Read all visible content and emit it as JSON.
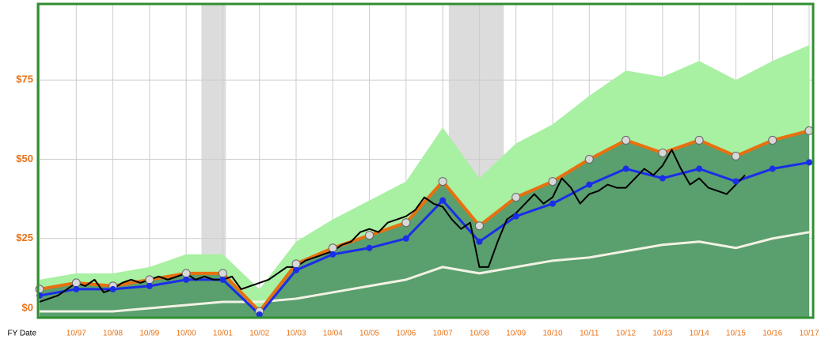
{
  "chart_data": {
    "type": "fast-graph",
    "x_label": "FY Date",
    "categories": [
      null,
      "10/97",
      "10/98",
      "10/99",
      "10/00",
      "10/01",
      "10/02",
      "10/03",
      "10/04",
      "10/05",
      "10/06",
      "10/07",
      "10/08",
      "10/09",
      "10/10",
      "10/11",
      "10/12",
      "10/13",
      "10/14",
      "10/15",
      "10/16",
      "10/17"
    ],
    "ylim": [
      0,
      99
    ],
    "yticks": [
      {
        "value": 0,
        "label": "$0"
      },
      {
        "value": 25,
        "label": "$25"
      },
      {
        "value": 50,
        "label": "$50"
      },
      {
        "value": 75,
        "label": "$75"
      }
    ],
    "grid": true,
    "recessions": [
      {
        "start": "03/01",
        "end": "11/01"
      },
      {
        "start": "12/07",
        "end": "06/09"
      }
    ],
    "areas": [
      {
        "color": "#a8f0a2",
        "values": [
          12,
          14,
          14,
          16,
          20,
          20,
          9,
          24,
          31,
          37,
          43,
          60,
          44,
          55,
          61,
          70,
          78,
          76,
          81,
          75,
          81,
          86
        ]
      },
      {
        "color": "#5a9f6e",
        "values": [
          9,
          11,
          10,
          12,
          14,
          14,
          2,
          17,
          22,
          26,
          30,
          43,
          29,
          38,
          43,
          50,
          56,
          52,
          56,
          51,
          56,
          59
        ]
      }
    ],
    "series": [
      {
        "color": "#f2f2e4",
        "values": [
          2,
          2,
          2,
          3,
          4,
          5,
          5,
          6,
          8,
          10,
          12,
          16,
          14,
          16,
          18,
          19,
          21,
          23,
          24,
          22,
          25,
          27
        ],
        "marker": "none",
        "width": 3
      },
      {
        "color": "#e8700f",
        "values": [
          9,
          11,
          10,
          12,
          14,
          14,
          2,
          17,
          22,
          26,
          30,
          43,
          29,
          38,
          43,
          50,
          56,
          52,
          56,
          51,
          56,
          59
        ],
        "marker": "cap",
        "width": 4
      },
      {
        "color": "#1a2ee8",
        "values": [
          7,
          9,
          9,
          10,
          12,
          12,
          1,
          15,
          20,
          22,
          25,
          37,
          24,
          32,
          36,
          42,
          47,
          44,
          47,
          43,
          47,
          49
        ],
        "marker": "dot",
        "width": 3
      }
    ],
    "price": {
      "color": "#000000",
      "x": [
        "10/96",
        "01/97",
        "04/97",
        "07/97",
        "10/97",
        "01/98",
        "04/98",
        "07/98",
        "10/98",
        "01/99",
        "04/99",
        "07/99",
        "10/99",
        "01/00",
        "04/00",
        "07/00",
        "10/00",
        "01/01",
        "04/01",
        "07/01",
        "10/01",
        "01/02",
        "04/02",
        "07/02",
        "10/02",
        "01/03",
        "04/03",
        "07/03",
        "10/03",
        "01/04",
        "04/04",
        "07/04",
        "10/04",
        "01/05",
        "04/05",
        "07/05",
        "10/05",
        "01/06",
        "04/06",
        "07/06",
        "10/06",
        "01/07",
        "04/07",
        "07/07",
        "10/07",
        "01/08",
        "04/08",
        "07/08",
        "10/08",
        "01/09",
        "04/09",
        "07/09",
        "10/09",
        "01/10",
        "04/10",
        "07/10",
        "10/10",
        "01/11",
        "04/11",
        "07/11",
        "10/11",
        "01/12",
        "04/12",
        "07/12",
        "10/12",
        "01/13",
        "04/13",
        "07/13",
        "10/13",
        "01/14",
        "04/14",
        "07/14",
        "10/14",
        "01/15",
        "04/15",
        "07/15",
        "10/15",
        "01/16"
      ],
      "values": [
        5,
        6,
        7,
        9,
        11,
        10,
        12,
        8,
        9,
        11,
        12,
        11,
        12,
        13,
        12,
        13,
        14,
        12,
        13,
        12,
        12,
        13,
        9,
        10,
        11,
        12,
        14,
        16,
        16,
        18,
        19,
        20,
        21,
        23,
        24,
        27,
        28,
        27,
        30,
        31,
        32,
        34,
        38,
        36,
        35,
        31,
        28,
        30,
        16,
        16,
        24,
        31,
        33,
        36,
        39,
        36,
        38,
        44,
        41,
        36,
        39,
        40,
        42,
        41,
        41,
        44,
        47,
        45,
        48,
        53,
        47,
        42,
        44,
        41,
        40,
        39,
        42,
        45
      ]
    }
  }
}
